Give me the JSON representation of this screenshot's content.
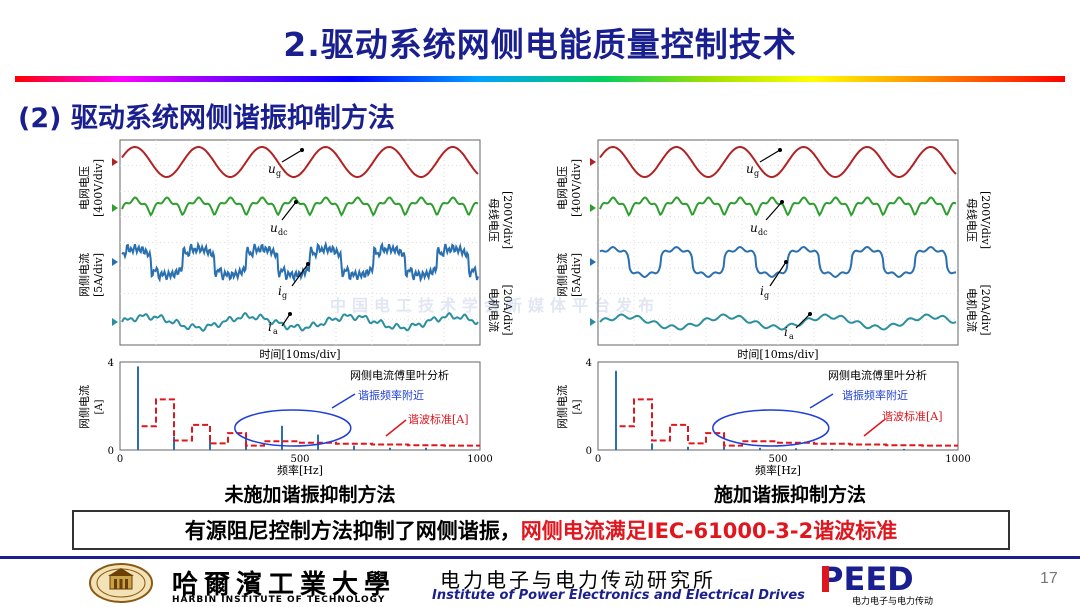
{
  "slide": {
    "title": "2.驱动系统网侧电能质量控制技术",
    "subtitle": "(2) 驱动系统网侧谐振抑制方法",
    "page_number": "17",
    "watermark": "中国电工技术学会新媒体平台发布"
  },
  "panels": [
    {
      "id": "left",
      "caption": "未施加谐振抑制方法",
      "waveform": {
        "left_labels": [
          "电网电压",
          "[400V/div]",
          "网侧电流",
          "[5A/div]"
        ],
        "right_labels": [
          "母线电压",
          "[200V/div]",
          "电机电流",
          "[20A/div]"
        ],
        "xlabel": "时间[10ms/div]",
        "trace_labels": [
          "u",
          "g",
          "u",
          "dc",
          "i",
          "g",
          "i",
          "a"
        ]
      },
      "spectrum": {
        "ylabel": "网侧电流",
        "yunit": "[A]",
        "xlabel": "频率[Hz]",
        "legend_title": "网侧电流傅里叶分析",
        "annot_resonance": "谐振频率附近",
        "annot_standard": "谐波标准[A]",
        "x_ticks": [
          "0",
          "500",
          "1000"
        ],
        "y_ticks": [
          "0",
          "4"
        ]
      }
    },
    {
      "id": "right",
      "caption": "施加谐振抑制方法",
      "waveform": {
        "left_labels": [
          "电网电压",
          "[400V/div]",
          "网侧电流",
          "[5A/div]"
        ],
        "right_labels": [
          "母线电压",
          "[200V/div]",
          "电机电流",
          "[20A/div]"
        ],
        "xlabel": "时间[10ms/div]",
        "trace_labels": [
          "u",
          "g",
          "u",
          "dc",
          "i",
          "g",
          "i",
          "a"
        ]
      },
      "spectrum": {
        "ylabel": "网侧电流",
        "yunit": "[A]",
        "xlabel": "频率[Hz]",
        "legend_title": "网侧电流傅里叶分析",
        "annot_resonance": "谐振频率附近",
        "annot_standard": "谐波标准[A]",
        "x_ticks": [
          "0",
          "500",
          "1000"
        ],
        "y_ticks": [
          "0",
          "4"
        ]
      }
    }
  ],
  "conclusion": {
    "part1": "有源阻尼控制方法抑制了网侧谐振，",
    "part2": "网侧电流满足IEC-61000-3-2谐波标准"
  },
  "footer": {
    "university_cn": "哈爾濱工業大學",
    "university_en": "HARBIN INSTITUTE OF TECHNOLOGY",
    "institute_cn": "电力电子与电力传动研究所",
    "institute_en": "Institute of Power Electronics and Electrical Drives",
    "peed": "PEED",
    "peed_sub": "电力电子与电力传动"
  },
  "colors": {
    "title": "#1a1f8f",
    "grid_voltage": "#b22222",
    "dc_voltage": "#2e9e2e",
    "grid_current": "#2a6fb0",
    "motor_current": "#2a8f9f",
    "spectrum_bar": "#2a6fb0",
    "standard_line": "#e0161e",
    "ellipse": "#1f3fd6",
    "highlight": "#e0161e"
  },
  "chart_data": [
    {
      "type": "bar",
      "title": "网侧电流傅里叶分析",
      "xlabel": "频率[Hz]",
      "ylabel": "网侧电流[A]",
      "xlim": [
        0,
        1000
      ],
      "ylim": [
        0,
        4
      ],
      "series": [
        {
          "name": "网侧电流傅里叶分析",
          "x": [
            50,
            150,
            250,
            350,
            450,
            550,
            650,
            750,
            850
          ],
          "values": [
            3.8,
            0.6,
            0.45,
            0.5,
            1.1,
            0.7,
            0.2,
            0.1,
            0.1
          ]
        },
        {
          "name": "谐波标准[A]",
          "x": [
            100,
            150,
            200,
            250,
            300,
            350,
            400,
            500,
            600,
            700,
            800,
            900,
            1000
          ],
          "values": [
            1.08,
            2.3,
            0.43,
            1.14,
            0.3,
            0.77,
            0.2,
            0.4,
            0.33,
            0.28,
            0.25,
            0.22,
            0.2
          ]
        }
      ]
    },
    {
      "type": "bar",
      "title": "网侧电流傅里叶分析",
      "xlabel": "频率[Hz]",
      "ylabel": "网侧电流[A]",
      "xlim": [
        0,
        1000
      ],
      "ylim": [
        0,
        4
      ],
      "series": [
        {
          "name": "网侧电流傅里叶分析",
          "x": [
            50,
            150,
            250,
            350,
            450,
            550,
            650,
            750,
            850
          ],
          "values": [
            3.6,
            0.3,
            0.15,
            0.15,
            0.1,
            0.08,
            0.05,
            0.05,
            0.05
          ]
        },
        {
          "name": "谐波标准[A]",
          "x": [
            100,
            150,
            200,
            250,
            300,
            350,
            400,
            500,
            600,
            700,
            800,
            900,
            1000
          ],
          "values": [
            1.08,
            2.3,
            0.43,
            1.14,
            0.3,
            0.77,
            0.2,
            0.4,
            0.33,
            0.28,
            0.25,
            0.22,
            0.2
          ]
        }
      ]
    }
  ]
}
